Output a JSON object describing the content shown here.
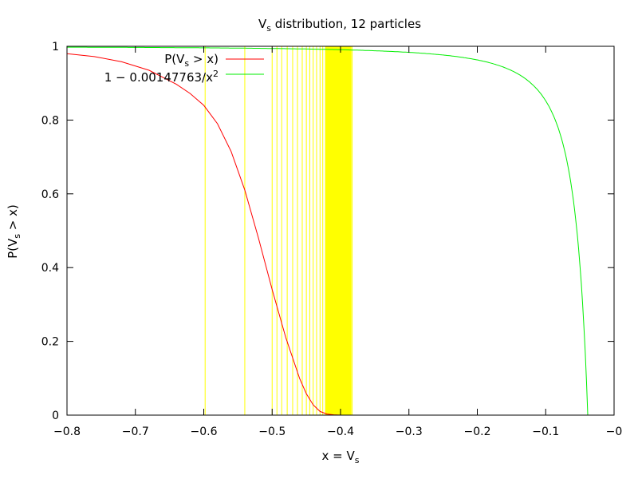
{
  "chart_data": {
    "type": "line",
    "title": {
      "main": "V",
      "sub": "s",
      "rest": " distribution, 12 particles"
    },
    "xlabel": {
      "main": "x = V",
      "sub": "s",
      "rest": ""
    },
    "ylabel": {
      "main": "P(V",
      "sub": "s",
      "rest": " > x)"
    },
    "xlim": [
      -0.8,
      0
    ],
    "ylim": [
      0,
      1
    ],
    "xticks": [
      {
        "value": -0.8,
        "label": "−0.8"
      },
      {
        "value": -0.7,
        "label": "−0.7"
      },
      {
        "value": -0.6,
        "label": "−0.6"
      },
      {
        "value": -0.5,
        "label": "−0.5"
      },
      {
        "value": -0.4,
        "label": "−0.4"
      },
      {
        "value": -0.3,
        "label": "−0.3"
      },
      {
        "value": -0.2,
        "label": "−0.2"
      },
      {
        "value": -0.1,
        "label": "−0.1"
      },
      {
        "value": 0,
        "label": "−0"
      }
    ],
    "yticks": [
      {
        "value": 0,
        "label": "0"
      },
      {
        "value": 0.2,
        "label": "0.2"
      },
      {
        "value": 0.4,
        "label": "0.4"
      },
      {
        "value": 0.6,
        "label": "0.6"
      },
      {
        "value": 0.8,
        "label": "0.8"
      },
      {
        "value": 1,
        "label": "1"
      }
    ],
    "grid": false,
    "legend_position": "top-left",
    "series": [
      {
        "name": {
          "main": "P(V",
          "sub": "s",
          "rest": " > x)"
        },
        "color": "#ff0000",
        "x": [
          -0.8,
          -0.76,
          -0.72,
          -0.68,
          -0.64,
          -0.62,
          -0.6,
          -0.58,
          -0.56,
          -0.54,
          -0.52,
          -0.5,
          -0.48,
          -0.46,
          -0.45,
          -0.44,
          -0.43,
          -0.42,
          -0.41,
          -0.4,
          -0.38,
          -0.3,
          -0.2,
          -0.18
        ],
        "y": [
          0.98,
          0.972,
          0.958,
          0.935,
          0.897,
          0.872,
          0.84,
          0.79,
          0.715,
          0.61,
          0.48,
          0.34,
          0.21,
          0.1,
          0.058,
          0.028,
          0.01,
          0.003,
          0.0008,
          0,
          0,
          0,
          0,
          0
        ]
      },
      {
        "name": {
          "main": "1 − 0.00147763/x",
          "sup": "2",
          "rest": ""
        },
        "color": "#00ee00",
        "formula": {
          "a": 0.00147763,
          "x_max": -0.03845
        }
      }
    ],
    "vertical_lines": {
      "color": "#ffff00",
      "x": [
        -0.598,
        -0.54,
        -0.5,
        -0.493,
        -0.486,
        -0.478,
        -0.47,
        -0.463,
        -0.456,
        -0.45,
        -0.445,
        -0.44,
        -0.435,
        -0.43,
        -0.426,
        -0.422,
        -0.418,
        -0.414,
        -0.41,
        -0.407,
        -0.404,
        -0.401,
        -0.398,
        -0.395,
        -0.392,
        -0.389,
        -0.386,
        -0.383
      ]
    },
    "shaded_band": {
      "color": "#ffff00",
      "x_range": [
        -0.422,
        -0.384
      ]
    }
  }
}
